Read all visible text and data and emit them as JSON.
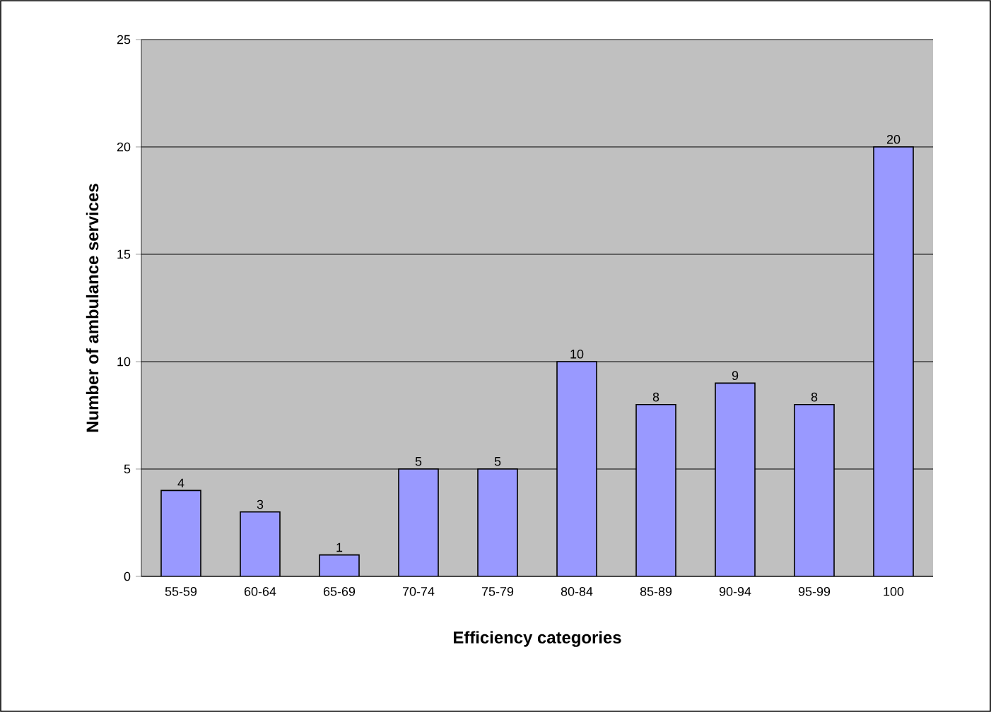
{
  "chart_data": {
    "type": "bar",
    "xlabel": "Efficiency categories",
    "ylabel": "Number of ambulance services",
    "categories": [
      "55-59",
      "60-64",
      "65-69",
      "70-74",
      "75-79",
      "80-84",
      "85-89",
      "90-94",
      "95-99",
      "100"
    ],
    "values": [
      4,
      3,
      1,
      5,
      5,
      10,
      8,
      9,
      8,
      20
    ],
    "color": "#9999ff",
    "ylim": [
      0,
      25
    ],
    "yticks": [
      0,
      5,
      10,
      15,
      20,
      25
    ],
    "grid": "y",
    "data_labels": true
  }
}
